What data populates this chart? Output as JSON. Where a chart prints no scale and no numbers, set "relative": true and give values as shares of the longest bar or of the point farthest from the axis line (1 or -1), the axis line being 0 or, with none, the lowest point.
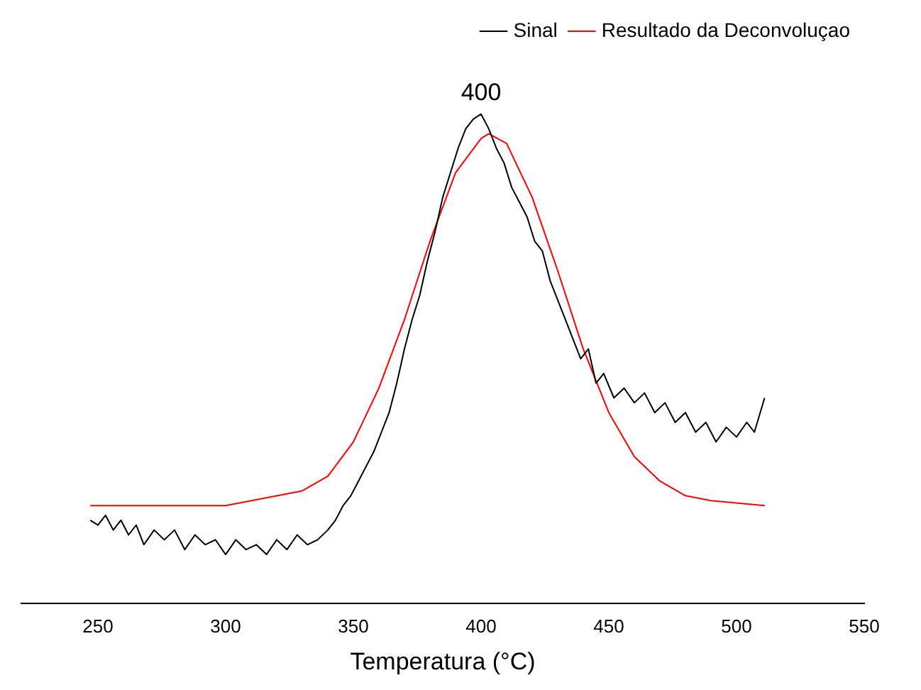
{
  "chart_data": {
    "type": "line",
    "xlabel": "Temperatura (°C)",
    "relative": true,
    "xlim": [
      220,
      550
    ],
    "xticks": [
      250,
      300,
      350,
      400,
      450,
      500,
      550
    ],
    "grid": false,
    "legend": "top right",
    "marker": "none",
    "line_style": "solid",
    "annotations": [
      {
        "text": "400",
        "x": 400,
        "y": 1
      }
    ],
    "series": [
      {
        "name": "Sinal",
        "color": "#000000",
        "x": [
          247,
          250,
          253,
          256,
          259,
          262,
          265,
          268,
          272,
          276,
          280,
          284,
          288,
          292,
          296,
          300,
          304,
          308,
          312,
          316,
          320,
          324,
          328,
          332,
          336,
          340,
          343,
          346,
          349,
          352,
          355,
          358,
          361,
          364,
          367,
          370,
          373,
          376,
          379,
          382,
          385,
          388,
          391,
          394,
          397,
          400,
          403,
          406,
          409,
          412,
          415,
          418,
          421,
          424,
          427,
          430,
          433,
          436,
          439,
          442,
          445,
          448,
          452,
          456,
          460,
          464,
          468,
          472,
          476,
          480,
          484,
          488,
          492,
          496,
          500,
          504,
          507,
          511
        ],
        "values": [
          0.17,
          0.16,
          0.18,
          0.15,
          0.17,
          0.14,
          0.16,
          0.12,
          0.15,
          0.13,
          0.15,
          0.11,
          0.14,
          0.12,
          0.13,
          0.1,
          0.13,
          0.11,
          0.12,
          0.1,
          0.13,
          0.11,
          0.14,
          0.12,
          0.13,
          0.15,
          0.17,
          0.2,
          0.22,
          0.25,
          0.28,
          0.31,
          0.35,
          0.39,
          0.45,
          0.52,
          0.58,
          0.63,
          0.7,
          0.76,
          0.83,
          0.88,
          0.93,
          0.97,
          0.99,
          1.0,
          0.97,
          0.93,
          0.9,
          0.85,
          0.82,
          0.79,
          0.74,
          0.72,
          0.66,
          0.62,
          0.58,
          0.54,
          0.5,
          0.52,
          0.45,
          0.47,
          0.42,
          0.44,
          0.41,
          0.43,
          0.39,
          0.41,
          0.37,
          0.39,
          0.35,
          0.37,
          0.33,
          0.36,
          0.34,
          0.37,
          0.35,
          0.42
        ]
      },
      {
        "name": "Resultado da Deconvoluçao",
        "color": "#ff0000",
        "x": [
          247,
          300,
          330,
          340,
          350,
          360,
          370,
          380,
          390,
          400,
          403,
          410,
          420,
          430,
          440,
          450,
          460,
          470,
          480,
          490,
          511
        ],
        "values": [
          0.2,
          0.2,
          0.23,
          0.26,
          0.33,
          0.44,
          0.58,
          0.74,
          0.88,
          0.95,
          0.96,
          0.94,
          0.83,
          0.68,
          0.52,
          0.39,
          0.3,
          0.25,
          0.22,
          0.21,
          0.2
        ]
      }
    ]
  }
}
